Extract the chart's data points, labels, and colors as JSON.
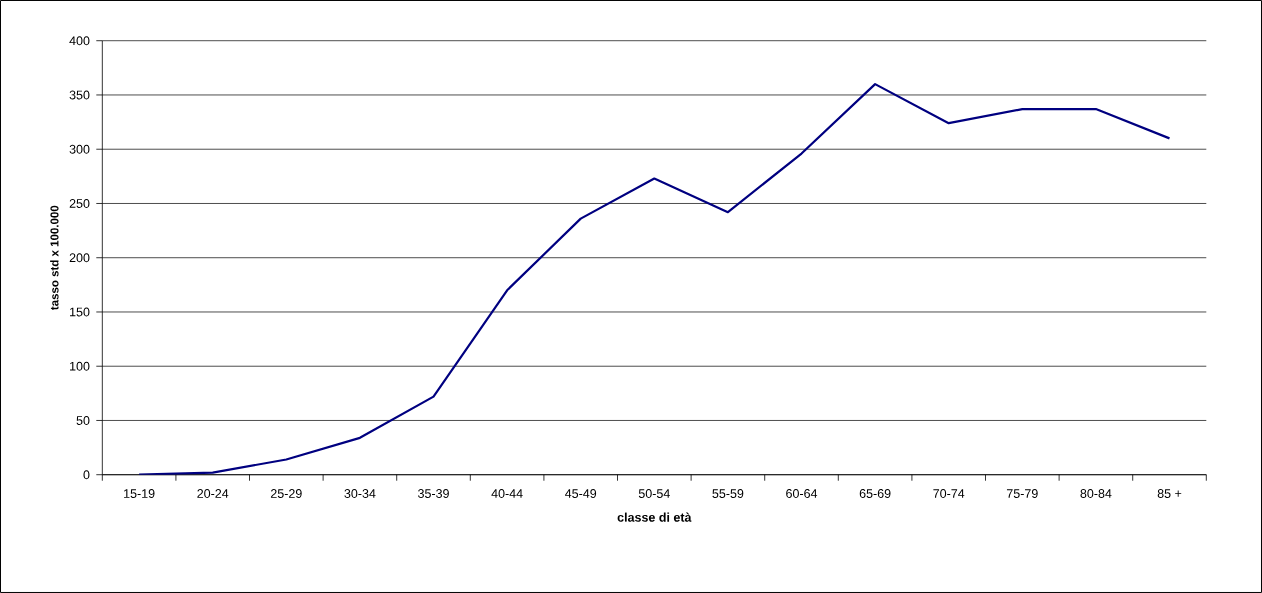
{
  "chart_data": {
    "type": "line",
    "xlabel": "classe di età",
    "ylabel": "tasso std  x 100.000",
    "categories": [
      "15-19",
      "20-24",
      "25-29",
      "30-34",
      "35-39",
      "40-44",
      "45-49",
      "50-54",
      "55-59",
      "60-64",
      "65-69",
      "70-74",
      "75-79",
      "80-84",
      "85 +"
    ],
    "series": [
      {
        "color": "#000080",
        "values": [
          0,
          2,
          14,
          34,
          72,
          170,
          236,
          273,
          242,
          296,
          360,
          324,
          337,
          337,
          310
        ]
      }
    ],
    "ylim": [
      0,
      400
    ],
    "yticks": [
      0,
      50,
      100,
      150,
      200,
      250,
      300,
      350,
      400
    ],
    "grid": "y",
    "marker": "none",
    "line_style": "solid"
  }
}
